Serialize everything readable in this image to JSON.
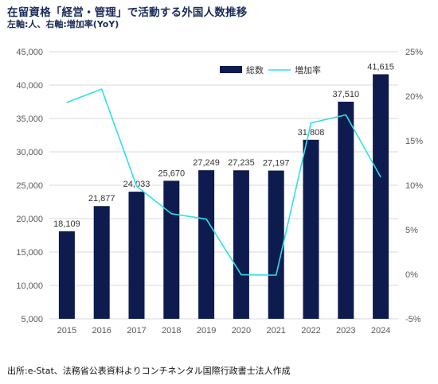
{
  "header": {
    "title": "在留資格「経営・管理」で活動する外国人数推移",
    "subtitle": "左軸:人、右軸:増加率(YoY)"
  },
  "source": "出所:e-Stat、法務省公表資料よりコンチネンタル国際行政書士法人作成",
  "colors": {
    "bar": "#0d1b4f",
    "line": "#2ee0e8",
    "grid": "#d9d9d9"
  },
  "chart_data": {
    "type": "bar",
    "categories": [
      "2015",
      "2016",
      "2017",
      "2018",
      "2019",
      "2020",
      "2021",
      "2022",
      "2023",
      "2024"
    ],
    "series": [
      {
        "name": "総数",
        "type": "bar",
        "axis": "left",
        "values": [
          18109,
          21877,
          24033,
          25670,
          27249,
          27235,
          27197,
          31808,
          37510,
          41615
        ],
        "labels": [
          "18,109",
          "21,877",
          "24,033",
          "25,670",
          "27,249",
          "27,235",
          "27,197",
          "31,808",
          "37,510",
          "41,615"
        ]
      },
      {
        "name": "増加率",
        "type": "line",
        "axis": "right",
        "values": [
          19.3,
          20.8,
          9.9,
          6.8,
          6.2,
          -0.05,
          -0.1,
          17.0,
          17.9,
          10.9
        ]
      }
    ],
    "y_left": {
      "ylim": [
        5000,
        45000
      ],
      "ticks": [
        5000,
        10000,
        15000,
        20000,
        25000,
        30000,
        35000,
        40000,
        45000
      ],
      "tick_labels": [
        "5,000",
        "10,000",
        "15,000",
        "20,000",
        "25,000",
        "30,000",
        "35,000",
        "40,000",
        "45,000"
      ]
    },
    "y_right": {
      "ylim": [
        -5,
        25
      ],
      "ticks": [
        -5,
        0,
        5,
        10,
        15,
        20,
        25
      ],
      "tick_labels": [
        "-5%",
        "0%",
        "5%",
        "10%",
        "15%",
        "20%",
        "25%"
      ]
    },
    "grid": true,
    "legend": "top-right"
  }
}
